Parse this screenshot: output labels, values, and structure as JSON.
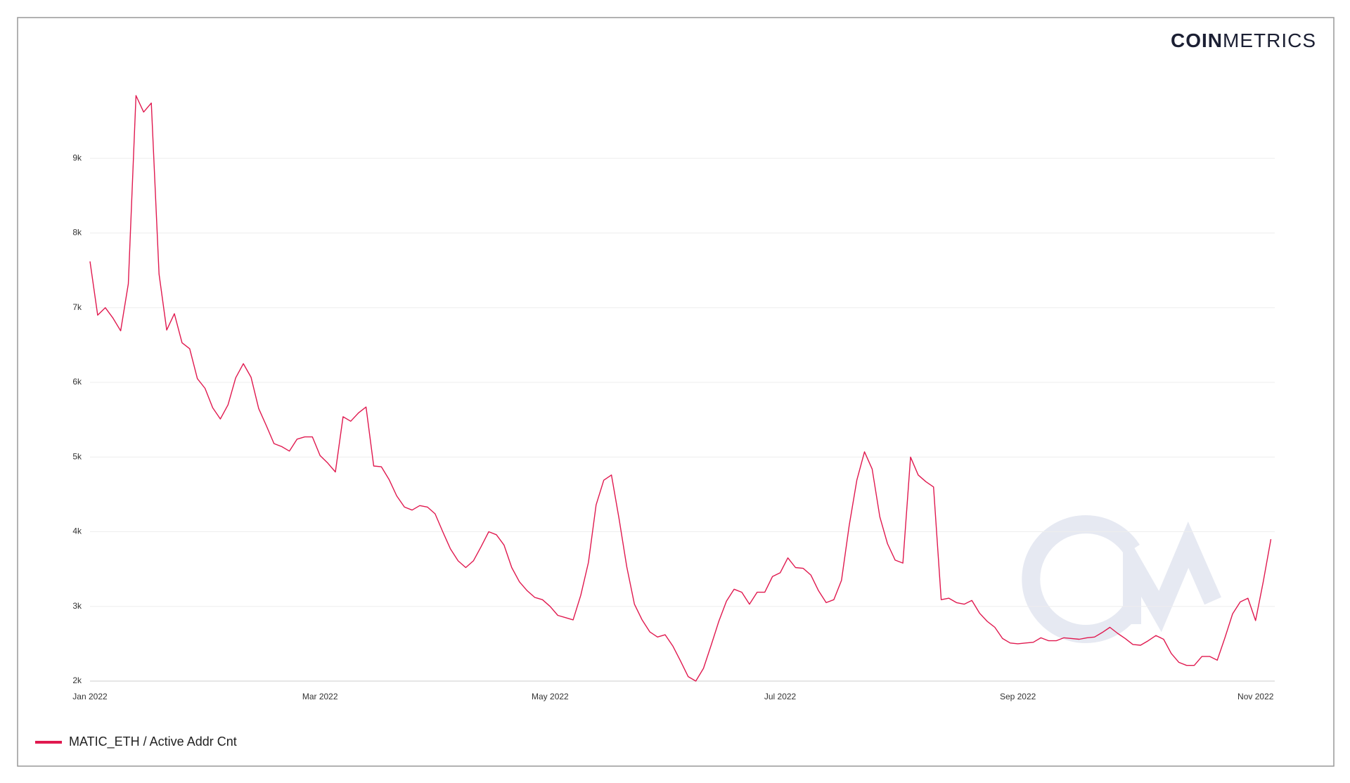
{
  "chart_data": {
    "type": "line",
    "brand": {
      "bold": "COIN",
      "light": "METRICS"
    },
    "categories": [
      "Jan 2022",
      null,
      null,
      null,
      null,
      null,
      null,
      null,
      null,
      null,
      null,
      null,
      null,
      null,
      null,
      null,
      null,
      null,
      null,
      null,
      null,
      null,
      null,
      null,
      null,
      null,
      null,
      null,
      null,
      null,
      "Mar 2022",
      null,
      null,
      null,
      null,
      null,
      null,
      null,
      null,
      null,
      null,
      null,
      null,
      null,
      null,
      null,
      null,
      null,
      null,
      null,
      null,
      null,
      null,
      null,
      null,
      null,
      null,
      null,
      null,
      null,
      "May 2022",
      null,
      null,
      null,
      null,
      null,
      null,
      null,
      null,
      null,
      null,
      null,
      null,
      null,
      null,
      null,
      null,
      null,
      null,
      null,
      null,
      null,
      null,
      null,
      null,
      null,
      null,
      null,
      null,
      null,
      "Jul 2022",
      null,
      null,
      null,
      null,
      null,
      null,
      null,
      null,
      null,
      null,
      null,
      null,
      null,
      null,
      null,
      null,
      null,
      null,
      null,
      null,
      null,
      null,
      null,
      null,
      null,
      null,
      null,
      null,
      null,
      null,
      "Sep 2022",
      null,
      null,
      null,
      null,
      null,
      null,
      null,
      null,
      null,
      null,
      null,
      null,
      null,
      null,
      null,
      null,
      null,
      null,
      null,
      null,
      null,
      null,
      null,
      null,
      null,
      null,
      null,
      null,
      null,
      null,
      "Nov 2022",
      null,
      null
    ],
    "series": [
      {
        "name": "MATIC_ETH / Active Addr Cnt",
        "color": "#e0194f",
        "values": [
          7620,
          6900,
          7000,
          6860,
          6690,
          7320,
          9840,
          9620,
          9740,
          7450,
          6700,
          6920,
          6530,
          6450,
          6050,
          5920,
          5660,
          5510,
          5700,
          6060,
          6250,
          6070,
          5650,
          5420,
          5180,
          5140,
          5080,
          5240,
          5270,
          5270,
          5020,
          4920,
          4800,
          5540,
          5480,
          5590,
          5670,
          4880,
          4870,
          4700,
          4480,
          4330,
          4290,
          4350,
          4330,
          4240,
          4000,
          3770,
          3610,
          3520,
          3610,
          3800,
          4000,
          3960,
          3820,
          3520,
          3330,
          3210,
          3120,
          3090,
          3000,
          2880,
          2850,
          2820,
          3150,
          3590,
          4360,
          4690,
          4760,
          4170,
          3530,
          3030,
          2820,
          2660,
          2590,
          2620,
          2470,
          2270,
          2060,
          2000,
          2170,
          2480,
          2800,
          3070,
          3230,
          3190,
          3030,
          3190,
          3190,
          3400,
          3450,
          3650,
          3520,
          3510,
          3420,
          3210,
          3050,
          3090,
          3350,
          4080,
          4690,
          5070,
          4840,
          4200,
          3840,
          3620,
          3580,
          5000,
          4760,
          4670,
          4600,
          3090,
          3110,
          3050,
          3030,
          3080,
          2910,
          2800,
          2720,
          2570,
          2510,
          2500,
          2510,
          2520,
          2580,
          2540,
          2540,
          2580,
          2570,
          2560,
          2580,
          2590,
          2650,
          2720,
          2640,
          2570,
          2490,
          2480,
          2540,
          2610,
          2560,
          2370,
          2250,
          2210,
          2210,
          2330,
          2330,
          2280,
          2580,
          2900,
          3060,
          3110,
          2810,
          3330,
          3900
        ]
      }
    ],
    "ylim": [
      2000,
      10000
    ],
    "yticks": [
      {
        "value": 2000,
        "label": "2k"
      },
      {
        "value": 3000,
        "label": "3k"
      },
      {
        "value": 4000,
        "label": "4k"
      },
      {
        "value": 5000,
        "label": "5k"
      },
      {
        "value": 6000,
        "label": "6k"
      },
      {
        "value": 7000,
        "label": "7k"
      },
      {
        "value": 8000,
        "label": "8k"
      },
      {
        "value": 9000,
        "label": "9k"
      }
    ],
    "grid": true,
    "legend": "bottom-left"
  }
}
